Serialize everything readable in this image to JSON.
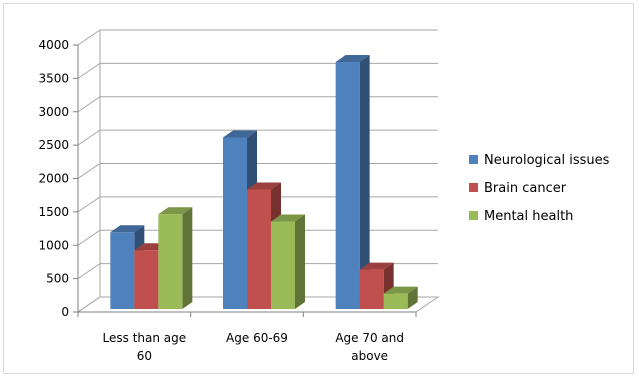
{
  "chart_data": {
    "type": "bar",
    "categories": [
      [
        "Less than age",
        "60"
      ],
      [
        "Age 60-69"
      ],
      [
        "Age 70 and",
        "above"
      ]
    ],
    "series": [
      {
        "name": "Neurological issues",
        "color": "#4F81BD",
        "values": [
          1150,
          2570,
          3700
        ]
      },
      {
        "name": "Brain cancer",
        "color": "#C0504D",
        "values": [
          880,
          1790,
          590
        ]
      },
      {
        "name": "Mental health",
        "color": "#9BBB59",
        "values": [
          1420,
          1310,
          230
        ]
      }
    ],
    "yticks": [
      0,
      500,
      1000,
      1500,
      2000,
      2500,
      3000,
      3500,
      4000
    ],
    "ylim": [
      0,
      4000
    ],
    "grid": true,
    "legend": "right",
    "three_d": true
  }
}
